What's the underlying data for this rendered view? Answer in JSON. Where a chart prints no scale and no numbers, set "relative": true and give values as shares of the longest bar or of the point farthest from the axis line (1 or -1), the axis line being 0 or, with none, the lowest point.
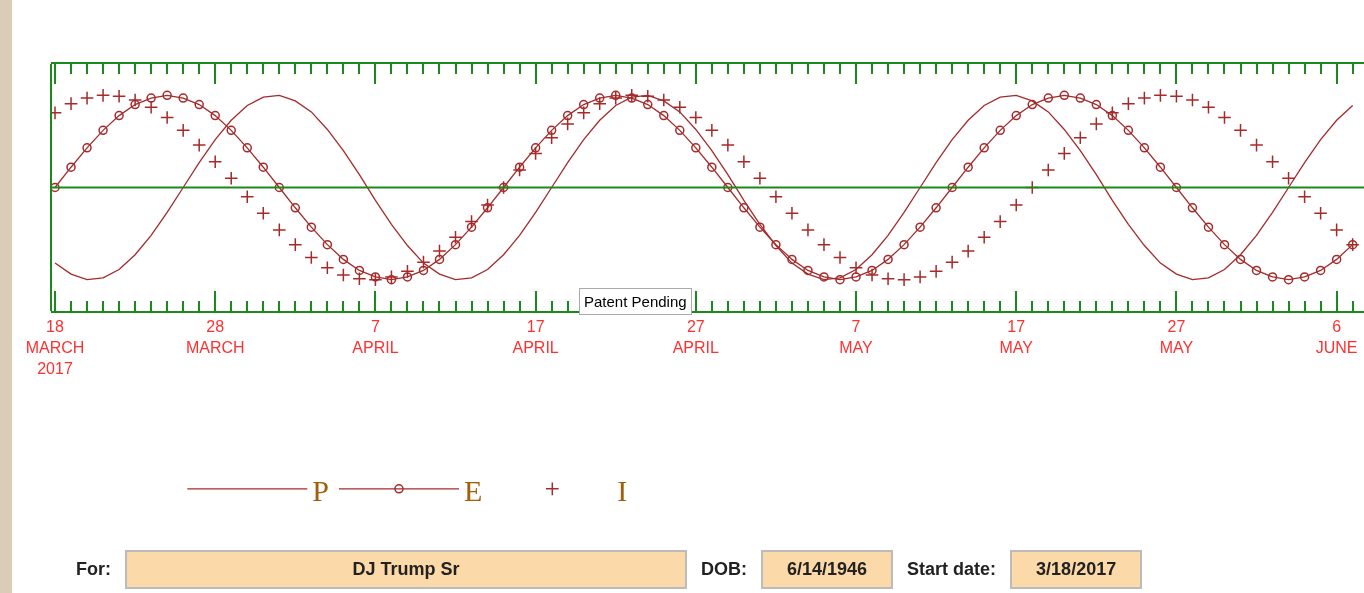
{
  "chart_data": {
    "type": "line",
    "relative": true,
    "x": [
      "2017-03-18",
      "2017-03-19",
      "2017-03-20",
      "2017-03-21",
      "2017-03-22",
      "2017-03-23",
      "2017-03-24",
      "2017-03-25",
      "2017-03-26",
      "2017-03-27",
      "2017-03-28",
      "2017-03-29",
      "2017-03-30",
      "2017-03-31",
      "2017-04-01",
      "2017-04-02",
      "2017-04-03",
      "2017-04-04",
      "2017-04-05",
      "2017-04-06",
      "2017-04-07",
      "2017-04-08",
      "2017-04-09",
      "2017-04-10",
      "2017-04-11",
      "2017-04-12",
      "2017-04-13",
      "2017-04-14",
      "2017-04-15",
      "2017-04-16",
      "2017-04-17",
      "2017-04-18",
      "2017-04-19",
      "2017-04-20",
      "2017-04-21",
      "2017-04-22",
      "2017-04-23",
      "2017-04-24",
      "2017-04-25",
      "2017-04-26",
      "2017-04-27",
      "2017-04-28",
      "2017-04-29",
      "2017-04-30",
      "2017-05-01",
      "2017-05-02",
      "2017-05-03",
      "2017-05-04",
      "2017-05-05",
      "2017-05-06",
      "2017-05-07",
      "2017-05-08",
      "2017-05-09",
      "2017-05-10",
      "2017-05-11",
      "2017-05-12",
      "2017-05-13",
      "2017-05-14",
      "2017-05-15",
      "2017-05-16",
      "2017-05-17",
      "2017-05-18",
      "2017-05-19",
      "2017-05-20",
      "2017-05-21",
      "2017-05-22",
      "2017-05-23",
      "2017-05-24",
      "2017-05-25",
      "2017-05-26",
      "2017-05-27",
      "2017-05-28",
      "2017-05-29",
      "2017-05-30",
      "2017-05-31",
      "2017-06-01",
      "2017-06-02",
      "2017-06-03",
      "2017-06-04",
      "2017-06-05",
      "2017-06-06",
      "2017-06-07"
    ],
    "xlim": [
      "2017-03-17T18:00",
      "2017-06-07T17:00"
    ],
    "xticks": [
      {
        "value": "2017-03-18",
        "label": "18\nMARCH\n2017"
      },
      {
        "value": "2017-03-28",
        "label": "28\nMARCH"
      },
      {
        "value": "2017-04-07",
        "label": "7\nAPRIL"
      },
      {
        "value": "2017-04-17",
        "label": "17\nAPRIL"
      },
      {
        "value": "2017-04-27",
        "label": "27\nAPRIL"
      },
      {
        "value": "2017-05-07",
        "label": "7\nMAY"
      },
      {
        "value": "2017-05-17",
        "label": "17\nMAY"
      },
      {
        "value": "2017-05-27",
        "label": "27\nMAY"
      },
      {
        "value": "2017-06-06",
        "label": "6\nJUNE"
      }
    ],
    "series": [
      {
        "name": "P",
        "color": "#a52a2a",
        "marker": "none",
        "line_style": "solid",
        "values": [
          -0.82,
          -0.94,
          -1.0,
          -0.98,
          -0.89,
          -0.73,
          -0.52,
          -0.27,
          0,
          0.27,
          0.52,
          0.73,
          0.89,
          0.98,
          1.0,
          0.94,
          0.82,
          0.63,
          0.4,
          0.14,
          -0.14,
          -0.4,
          -0.63,
          -0.82,
          -0.94,
          -1.0,
          -0.98,
          -0.89,
          -0.73,
          -0.52,
          -0.27,
          0,
          0.27,
          0.52,
          0.73,
          0.89,
          0.98,
          1.0,
          0.94,
          0.82,
          0.63,
          0.4,
          0.14,
          -0.14,
          -0.4,
          -0.63,
          -0.82,
          -0.94,
          -1.0,
          -0.98,
          -0.89,
          -0.73,
          -0.52,
          -0.27,
          0,
          0.27,
          0.52,
          0.73,
          0.89,
          0.98,
          1.0,
          0.94,
          0.82,
          0.63,
          0.4,
          0.14,
          -0.14,
          -0.4,
          -0.63,
          -0.82,
          -0.94,
          -1.0,
          -0.98,
          -0.89,
          -0.73,
          -0.52,
          -0.27,
          0,
          0.27,
          0.52,
          0.73,
          0.89
        ]
      },
      {
        "name": "E",
        "color": "#a52a2a",
        "marker": "circle",
        "line_style": "solid",
        "values": [
          0,
          0.22,
          0.43,
          0.62,
          0.78,
          0.9,
          0.97,
          1.0,
          0.97,
          0.9,
          0.78,
          0.62,
          0.43,
          0.22,
          0,
          -0.22,
          -0.43,
          -0.62,
          -0.78,
          -0.9,
          -0.97,
          -1.0,
          -0.97,
          -0.9,
          -0.78,
          -0.62,
          -0.43,
          -0.22,
          0,
          0.22,
          0.43,
          0.62,
          0.78,
          0.9,
          0.97,
          1.0,
          0.97,
          0.9,
          0.78,
          0.62,
          0.43,
          0.22,
          0,
          -0.22,
          -0.43,
          -0.62,
          -0.78,
          -0.9,
          -0.97,
          -1.0,
          -0.97,
          -0.9,
          -0.78,
          -0.62,
          -0.43,
          -0.22,
          0,
          0.22,
          0.43,
          0.62,
          0.78,
          0.9,
          0.97,
          1.0,
          0.97,
          0.9,
          0.78,
          0.62,
          0.43,
          0.22,
          0,
          -0.22,
          -0.43,
          -0.62,
          -0.78,
          -0.9,
          -0.97,
          -1.0,
          -0.97,
          -0.9,
          -0.78,
          -0.62
        ]
      },
      {
        "name": "I",
        "type": "scatter",
        "color": "#a52a2a",
        "marker": "cross",
        "values": [
          0.81,
          0.91,
          0.97,
          1.0,
          0.99,
          0.95,
          0.87,
          0.76,
          0.62,
          0.46,
          0.28,
          0.1,
          -0.1,
          -0.28,
          -0.46,
          -0.62,
          -0.76,
          -0.87,
          -0.95,
          -0.99,
          -1.0,
          -0.97,
          -0.91,
          -0.81,
          -0.69,
          -0.54,
          -0.37,
          -0.19,
          0,
          0.19,
          0.37,
          0.54,
          0.69,
          0.81,
          0.91,
          0.97,
          1.0,
          0.99,
          0.95,
          0.87,
          0.76,
          0.62,
          0.46,
          0.28,
          0.1,
          -0.1,
          -0.28,
          -0.46,
          -0.62,
          -0.76,
          -0.87,
          -0.95,
          -0.99,
          -1.0,
          -0.97,
          -0.91,
          -0.81,
          -0.69,
          -0.54,
          -0.37,
          -0.19,
          0,
          0.19,
          0.37,
          0.54,
          0.69,
          0.81,
          0.91,
          0.97,
          1.0,
          0.99,
          0.95,
          0.87,
          0.76,
          0.62,
          0.46,
          0.28,
          0.1,
          -0.1,
          -0.28,
          -0.46,
          -0.62
        ]
      }
    ],
    "grid": false,
    "legend": "bottom",
    "ref_lines": [
      {
        "axis": "y",
        "value": 0,
        "color": "#1a8a1a"
      }
    ],
    "annotations": [
      "Patent Pending",
      "For:",
      "DJ Trump Sr",
      "DOB:",
      "6/14/1946",
      "Start date:",
      "3/18/2017"
    ]
  }
}
